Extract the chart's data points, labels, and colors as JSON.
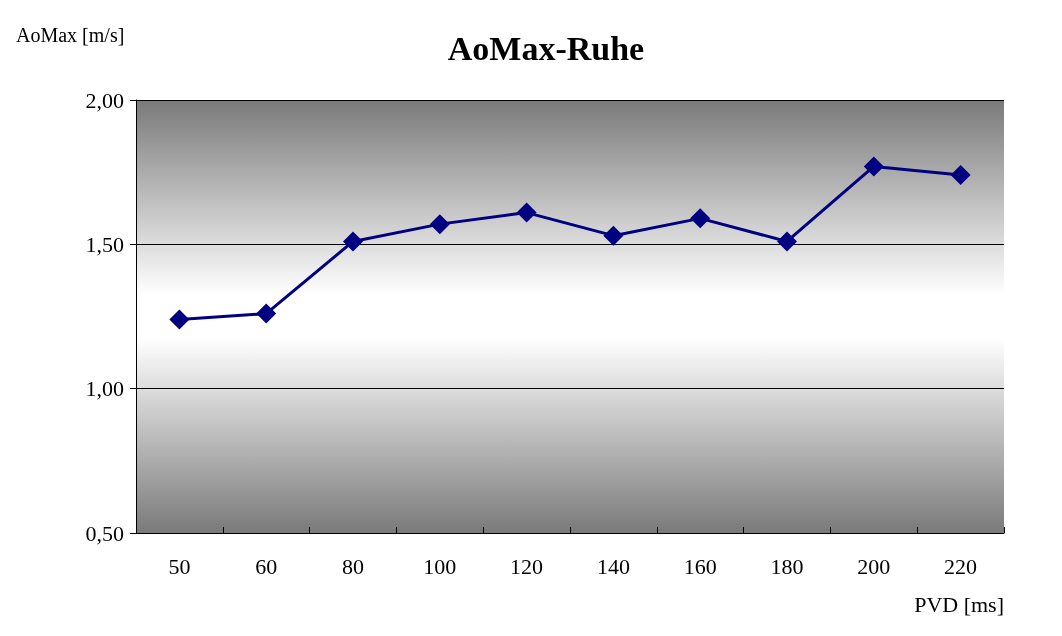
{
  "chart_data": {
    "type": "line",
    "title": "AoMax-Ruhe",
    "xlabel": "PVD [ms]",
    "ylabel": "AoMax [m/s]",
    "categories": [
      "50",
      "60",
      "80",
      "100",
      "120",
      "140",
      "160",
      "180",
      "200",
      "220"
    ],
    "series": [
      {
        "color": "#000080",
        "values": [
          1.24,
          1.26,
          1.51,
          1.57,
          1.61,
          1.53,
          1.59,
          1.51,
          1.77,
          1.74
        ]
      }
    ],
    "ylim": [
      0.5,
      2
    ],
    "yticks": [
      {
        "value": 0.5,
        "label": "0,50"
      },
      {
        "value": 1,
        "label": "1,00"
      },
      {
        "value": 1.5,
        "label": "1,50"
      },
      {
        "value": 2,
        "label": "2,00"
      }
    ],
    "grid": "y",
    "marker": "diamond",
    "line_style": "solid"
  }
}
